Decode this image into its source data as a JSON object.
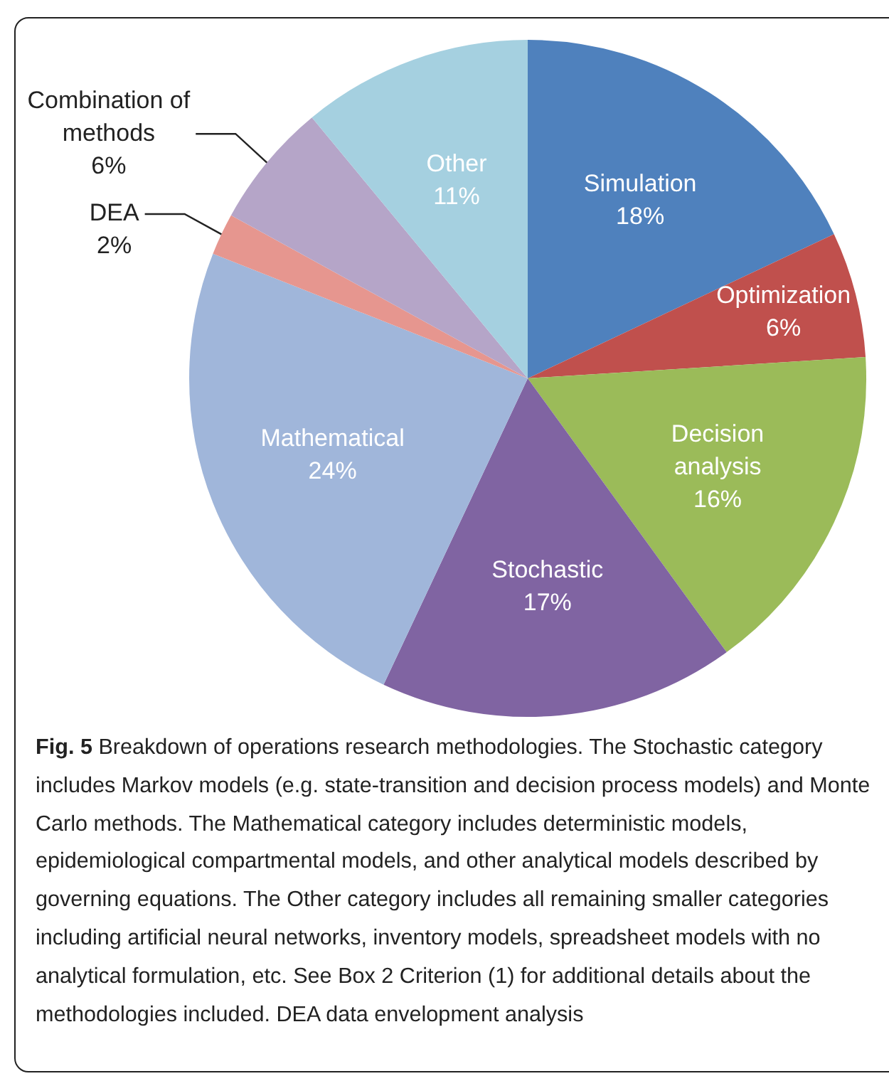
{
  "chart_data": {
    "type": "pie",
    "categories": [
      "Simulation",
      "Optimization",
      "Decision analysis",
      "Stochastic",
      "Mathematical",
      "DEA",
      "Combination of methods",
      "Other"
    ],
    "values": [
      18,
      6,
      16,
      17,
      24,
      2,
      6,
      11
    ],
    "value_labels": [
      "18%",
      "6%",
      "16%",
      "17%",
      "24%",
      "2%",
      "6%",
      "11%"
    ],
    "colors": [
      "#4f81bd",
      "#c0504d",
      "#9bbb59",
      "#8064a2",
      "#a0b6da",
      "#e6968f",
      "#b5a5c8",
      "#a5d0e0"
    ],
    "legend": false,
    "annotations": [
      "Fig. 5",
      "Breakdown of operations research methodologies. The Stochastic category includes Markov models (e.g. state-transition and decision process models) and Monte Carlo methods. The Mathematical category includes deterministic models, epidemiological compartmental models, and other analytical models described by governing equations. The Other category includes all remaining smaller categories including artificial neural networks, inventory models, spreadsheet models with no analytical formulation, etc. See Box 2 Criterion (1) for additional details about the methodologies included. DEA data envelopment analysis"
    ]
  }
}
